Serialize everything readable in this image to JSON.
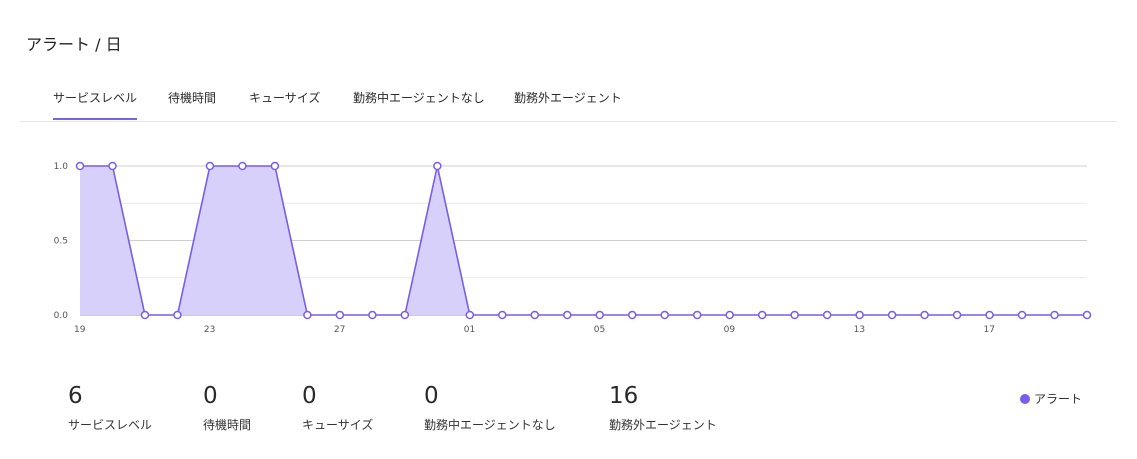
{
  "header": {
    "title": "アラート / 日"
  },
  "tabs": [
    {
      "label": "サービスレベル",
      "active": true
    },
    {
      "label": "待機時間",
      "active": false
    },
    {
      "label": "キューサイズ",
      "active": false
    },
    {
      "label": "勤務中エージェントなし",
      "active": false
    },
    {
      "label": "勤務外エージェント",
      "active": false
    }
  ],
  "colors": {
    "accent": "#7b61e8",
    "fill": "#d7d0fb",
    "line": "#7b5ce6"
  },
  "chart_data": {
    "type": "area",
    "x": [
      "19",
      "20",
      "21",
      "22",
      "23",
      "24",
      "25",
      "26",
      "27",
      "28",
      "29",
      "30",
      "01",
      "02",
      "03",
      "04",
      "05",
      "06",
      "07",
      "08",
      "09",
      "10",
      "11",
      "12",
      "13",
      "14",
      "15",
      "16",
      "17",
      "18",
      "19",
      "20"
    ],
    "xticks": [
      "19",
      "23",
      "27",
      "01",
      "05",
      "09",
      "13",
      "17"
    ],
    "yticks": [
      "0.0",
      "0.5",
      "1.0"
    ],
    "ylim": [
      0,
      1
    ],
    "grid": true,
    "series": [
      {
        "name": "アラート",
        "values": [
          1,
          1,
          0,
          0,
          1,
          1,
          1,
          0,
          0,
          0,
          0,
          1,
          0,
          0,
          0,
          0,
          0,
          0,
          0,
          0,
          0,
          0,
          0,
          0,
          0,
          0,
          0,
          0,
          0,
          0,
          0,
          0
        ]
      }
    ],
    "legend_position": "bottom-right"
  },
  "stats": [
    {
      "value": "6",
      "label": "サービスレベル"
    },
    {
      "value": "0",
      "label": "待機時間"
    },
    {
      "value": "0",
      "label": "キューサイズ"
    },
    {
      "value": "0",
      "label": "勤務中エージェントなし"
    },
    {
      "value": "16",
      "label": "勤務外エージェント"
    }
  ],
  "legend": {
    "label": "アラート"
  }
}
